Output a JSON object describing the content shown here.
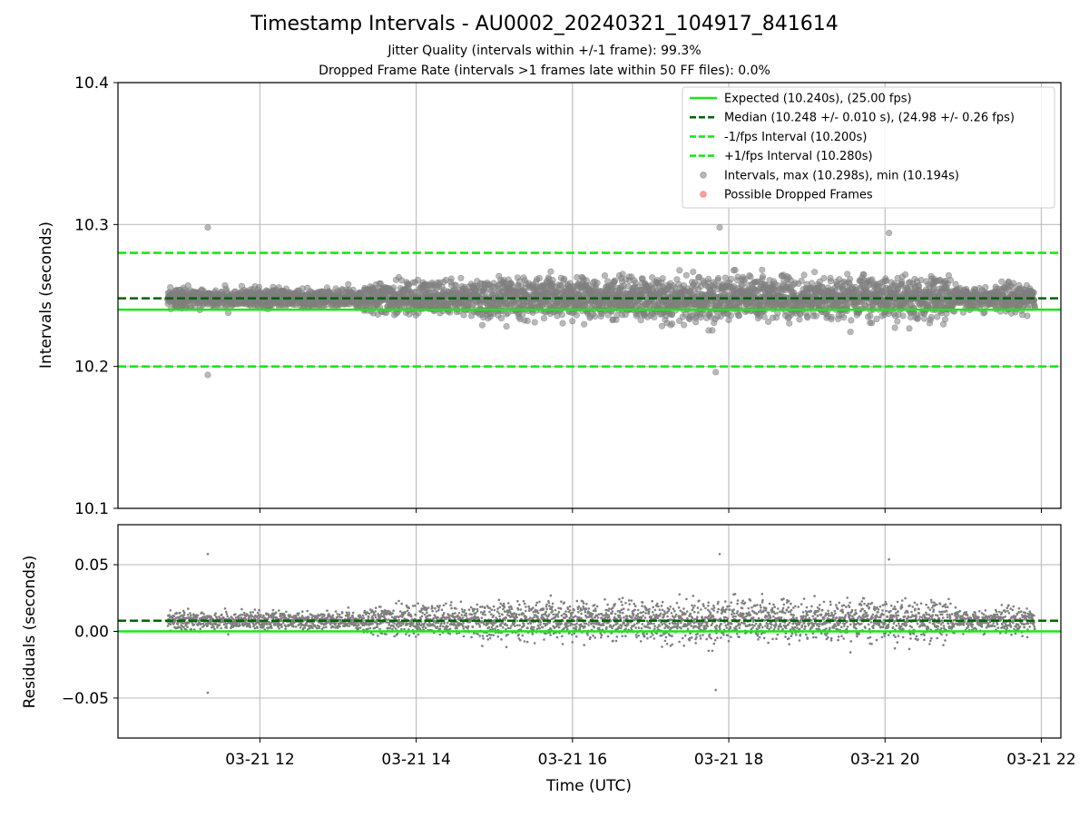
{
  "figure": {
    "title": "Timestamp Intervals - AU0002_20240321_104917_841614",
    "subtitle_jitter": "Jitter Quality (intervals within +/-1 frame): 99.3%",
    "subtitle_dropped": "Dropped Frame Rate (intervals >1 frames late within 50 FF files): 0.0%"
  },
  "colors": {
    "expected": "#17e817",
    "median": "#006400",
    "interval_band": "#17e817",
    "points": "#7f7f7f",
    "dropped": "#ff5555",
    "grid": "#bfbfbf"
  },
  "chart_data": [
    {
      "type": "scatter",
      "panel": "intervals",
      "ylabel": "Intervals (seconds)",
      "ylim": [
        10.1,
        10.4
      ],
      "yticks": [
        10.1,
        10.2,
        10.3,
        10.4
      ],
      "ytick_labels": [
        "10.1",
        "10.2",
        "10.3",
        "10.4"
      ],
      "xlim": [
        "2024-03-21T10:11",
        "2024-03-21T22:15"
      ],
      "xticks": [
        "2024-03-21T12:00",
        "2024-03-21T14:00",
        "2024-03-21T16:00",
        "2024-03-21T18:00",
        "2024-03-21T20:00",
        "2024-03-21T22:00"
      ],
      "grid": true,
      "legend_position": "upper right",
      "lines": [
        {
          "name": "Expected (10.240s), (25.00 fps)",
          "y": 10.24,
          "style": "solid",
          "color": "#17e817"
        },
        {
          "name": "Median (10.248 +/- 0.010 s), (24.98 +/- 0.26 fps)",
          "y": 10.248,
          "style": "dashed",
          "color": "#006400"
        },
        {
          "name": "-1/fps Interval (10.200s)",
          "y": 10.2,
          "style": "dashed",
          "color": "#17e817"
        },
        {
          "name": "+1/fps Interval (10.280s)",
          "y": 10.28,
          "style": "dashed",
          "color": "#17e817"
        }
      ],
      "series": [
        {
          "name": "Intervals, max (10.298s), min (10.194s)",
          "kind": "scatter",
          "color": "#7f7f7f",
          "x_start": "2024-03-21T10:49",
          "x_end": "2024-03-21T21:55",
          "count": 3900,
          "max": 10.298,
          "min": 10.194,
          "median": 10.248,
          "noted_points": [
            {
              "x": "2024-03-21T11:20",
              "y": 10.298
            },
            {
              "x": "2024-03-21T11:20",
              "y": 10.194
            },
            {
              "x": "2024-03-21T17:53",
              "y": 10.298
            },
            {
              "x": "2024-03-21T17:50",
              "y": 10.196
            },
            {
              "x": "2024-03-21T20:03",
              "y": 10.294
            }
          ]
        },
        {
          "name": "Possible Dropped Frames",
          "kind": "scatter",
          "color": "#ff5555",
          "points": []
        }
      ]
    },
    {
      "type": "scatter",
      "panel": "residuals",
      "xlabel": "Time (UTC)",
      "ylabel": "Residuals (seconds)",
      "ylim": [
        -0.08,
        0.08
      ],
      "yticks": [
        -0.05,
        0.0,
        0.05
      ],
      "ytick_labels": [
        "−0.05",
        "0.00",
        "0.05"
      ],
      "xlim": [
        "2024-03-21T10:11",
        "2024-03-21T22:15"
      ],
      "xticks": [
        "2024-03-21T12:00",
        "2024-03-21T14:00",
        "2024-03-21T16:00",
        "2024-03-21T18:00",
        "2024-03-21T20:00",
        "2024-03-21T22:00"
      ],
      "xtick_labels": [
        "03-21 12",
        "03-21 14",
        "03-21 16",
        "03-21 18",
        "03-21 20",
        "03-21 22"
      ],
      "grid": true,
      "lines": [
        {
          "y": 0.0,
          "style": "solid",
          "color": "#17e817"
        },
        {
          "y": 0.008,
          "style": "dashed",
          "color": "#006400"
        }
      ],
      "series": [
        {
          "kind": "scatter",
          "color": "#7f7f7f",
          "derived_from": "intervals - 10.240"
        }
      ]
    }
  ]
}
